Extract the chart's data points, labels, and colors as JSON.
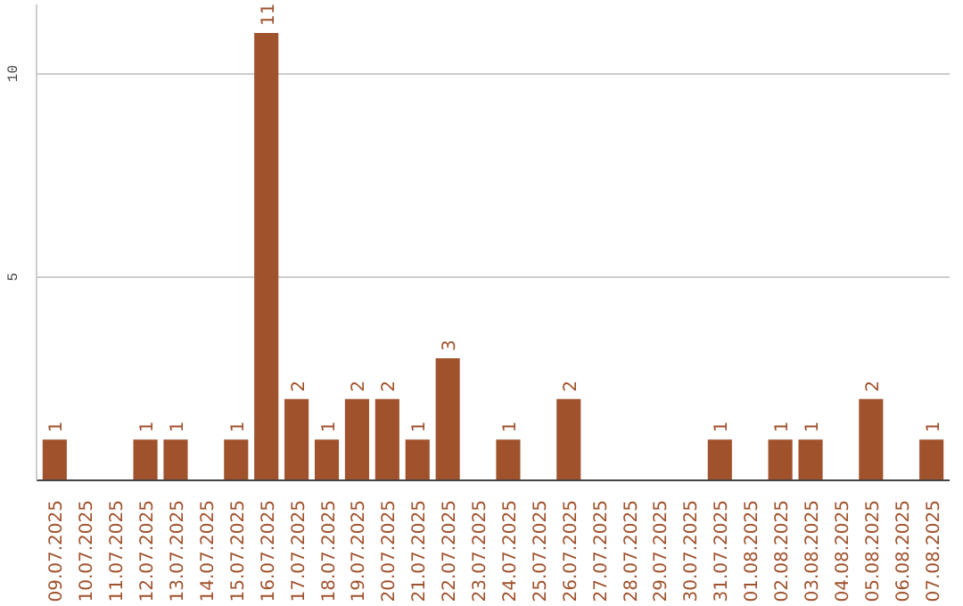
{
  "chart_data": {
    "type": "bar",
    "categories": [
      "09.07.2025",
      "10.07.2025",
      "11.07.2025",
      "12.07.2025",
      "13.07.2025",
      "14.07.2025",
      "15.07.2025",
      "16.07.2025",
      "17.07.2025",
      "18.07.2025",
      "19.07.2025",
      "20.07.2025",
      "21.07.2025",
      "22.07.2025",
      "23.07.2025",
      "24.07.2025",
      "25.07.2025",
      "26.07.2025",
      "27.07.2025",
      "28.07.2025",
      "29.07.2025",
      "30.07.2025",
      "31.07.2025",
      "01.08.2025",
      "02.08.2025",
      "03.08.2025",
      "04.08.2025",
      "05.08.2025",
      "06.08.2025",
      "07.08.2025"
    ],
    "values": [
      1,
      0,
      0,
      1,
      1,
      0,
      1,
      11,
      2,
      1,
      2,
      2,
      1,
      3,
      0,
      1,
      0,
      2,
      0,
      0,
      0,
      0,
      1,
      0,
      1,
      1,
      0,
      2,
      0,
      1
    ],
    "value_labels": [
      "1",
      null,
      null,
      "1",
      "1",
      null,
      "1",
      "11",
      "2",
      "1",
      "2",
      "2",
      "1",
      "3",
      null,
      "1",
      null,
      "2",
      null,
      null,
      null,
      null,
      "1",
      null,
      "1",
      "1",
      null,
      "2",
      null,
      "1"
    ],
    "color": "#a0522d",
    "ylim": [
      0,
      11.7
    ],
    "yticks": [
      5,
      10
    ],
    "grid": "y"
  }
}
